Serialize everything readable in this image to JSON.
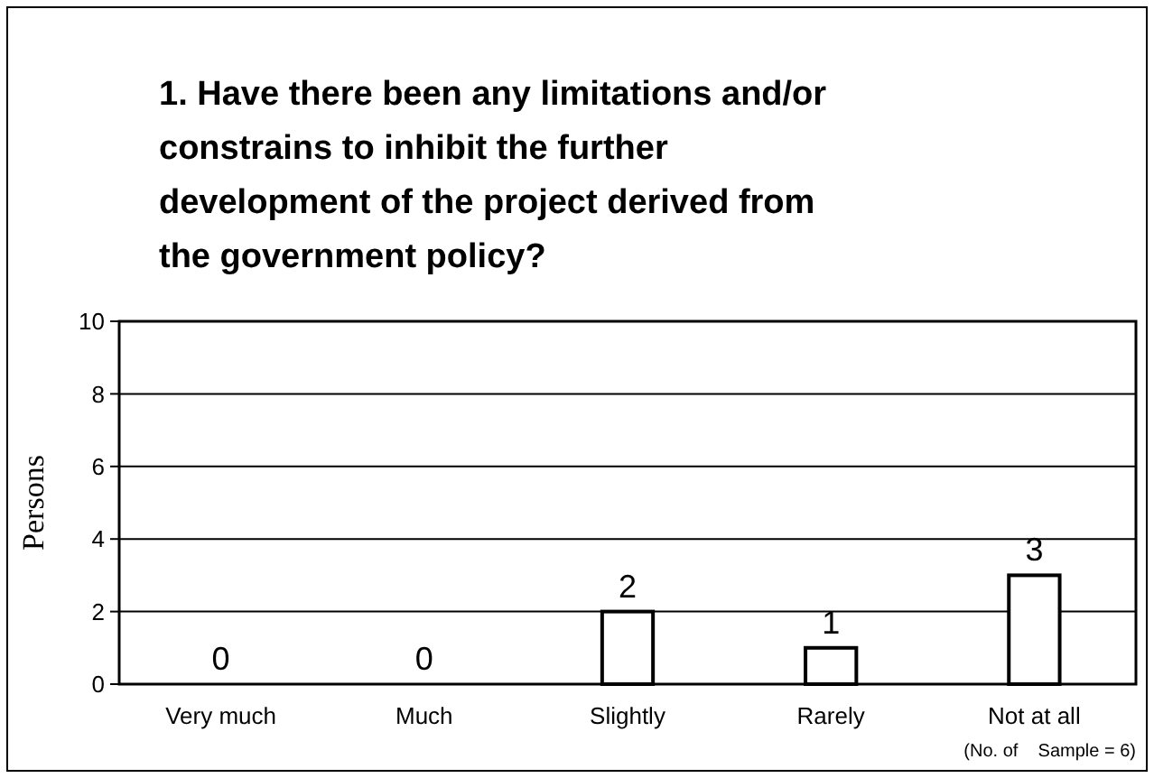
{
  "chart_data": {
    "type": "bar",
    "title": "1. Have there been any limitations and/or constrains to inhibit the further development of the project derived from the government policy?",
    "categories": [
      "Very much",
      "Much",
      "Slightly",
      "Rarely",
      "Not at all"
    ],
    "values": [
      0,
      0,
      2,
      1,
      3
    ],
    "color": "#ffffff",
    "ylabel": "Persons",
    "ylim": [
      0,
      10
    ],
    "yticks": [
      0,
      2,
      4,
      6,
      8,
      10
    ],
    "grid": "y",
    "data_labels": true,
    "annotations": [
      "(No. of    Sample = 6)"
    ]
  }
}
